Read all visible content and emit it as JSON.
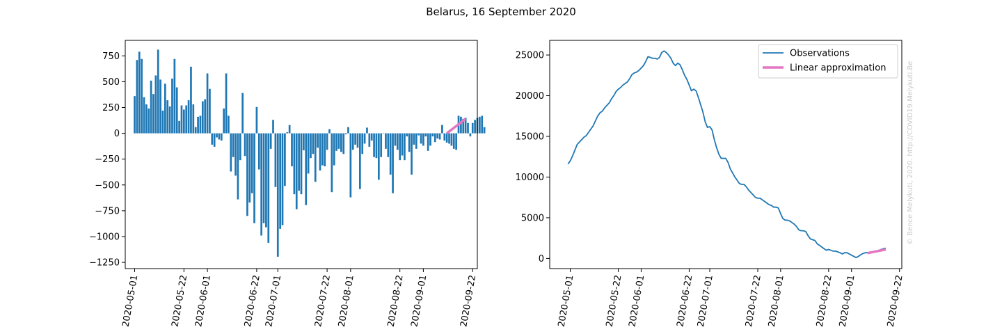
{
  "figure": {
    "suptitle": "Belarus, 16 September 2020",
    "watermark": "© Bence Melykuti, 2020. http://COVID19.Melykuti.Be"
  },
  "colors": {
    "bars": "#1f77b4",
    "observations": "#1f77b4",
    "linear_approximation": "#e377c2"
  },
  "chart_data": [
    {
      "type": "bar",
      "title": "",
      "xlabel": "",
      "ylabel": "",
      "x_axis": "date",
      "xlim": [
        "2020-04-27",
        "2020-09-24"
      ],
      "ylim": [
        -1310,
        900
      ],
      "xticks": [
        "2020-05-01",
        "2020-05-22",
        "2020-06-01",
        "2020-06-22",
        "2020-07-01",
        "2020-07-22",
        "2020-08-01",
        "2020-08-22",
        "2020-09-01",
        "2020-09-22"
      ],
      "yticks": [
        750,
        500,
        250,
        0,
        -250,
        -500,
        -750,
        -1000,
        -1250
      ],
      "ytick_labels": [
        "750",
        "500",
        "250",
        "0",
        "−250",
        "−500",
        "−750",
        "−1000",
        "−1250"
      ],
      "grid": false,
      "start_date": "2020-05-01",
      "series": [
        {
          "values": [
            360,
            710,
            790,
            720,
            350,
            280,
            240,
            510,
            380,
            560,
            810,
            520,
            220,
            480,
            320,
            260,
            530,
            720,
            445,
            120,
            270,
            230,
            270,
            320,
            645,
            280,
            60,
            160,
            170,
            310,
            330,
            580,
            430,
            -110,
            -130,
            -40,
            -60,
            -70,
            240,
            580,
            170,
            -370,
            -230,
            -410,
            -640,
            -260,
            390,
            -220,
            -800,
            -670,
            -580,
            -870,
            255,
            -350,
            -990,
            -870,
            -910,
            -1060,
            -150,
            130,
            -520,
            -1195,
            -925,
            -890,
            -510,
            10,
            80,
            -320,
            -590,
            -735,
            -555,
            -590,
            -165,
            -695,
            -390,
            -240,
            -200,
            -470,
            -140,
            -360,
            -310,
            -320,
            -160,
            40,
            -570,
            -310,
            -170,
            -150,
            -180,
            -200,
            -10,
            60,
            -620,
            -160,
            -110,
            -140,
            -540,
            -200,
            -100,
            55,
            -130,
            -70,
            -230,
            -240,
            -450,
            -230,
            0,
            -150,
            -230,
            -400,
            -580,
            -120,
            -160,
            -260,
            -215,
            -260,
            -30,
            -180,
            -400,
            -110,
            -150,
            -20,
            -100,
            -120,
            -30,
            -170,
            -120,
            -30,
            -85,
            -50,
            -60,
            80,
            -70,
            -90,
            -100,
            -120,
            -150,
            -160,
            170,
            160,
            140,
            150,
            100,
            -30,
            100,
            130,
            150,
            160,
            170,
            60
          ],
          "color": "#1f77b4"
        }
      ],
      "linear_approximation": {
        "x": [
          "2020-09-11",
          "2020-09-19"
        ],
        "y": [
          0,
          140
        ]
      }
    },
    {
      "type": "line",
      "title": "",
      "xlabel": "",
      "ylabel": "",
      "x_axis": "date",
      "xlim": [
        "2020-04-22",
        "2020-09-23"
      ],
      "ylim": [
        -1250,
        26800
      ],
      "xticks": [
        "2020-05-01",
        "2020-05-22",
        "2020-06-01",
        "2020-06-22",
        "2020-07-01",
        "2020-07-22",
        "2020-08-01",
        "2020-08-22",
        "2020-09-01",
        "2020-09-22"
      ],
      "yticks": [
        25000,
        20000,
        15000,
        10000,
        5000,
        0
      ],
      "grid": false,
      "legend": {
        "placement": "upper right",
        "entries": [
          "Observations",
          "Linear approximation"
        ]
      },
      "series": [
        {
          "name": "Observations",
          "color": "#1f77b4",
          "points": [
            [
              "2020-04-30",
              11600
            ],
            [
              "2020-05-01",
              12000
            ],
            [
              "2020-05-02",
              12600
            ],
            [
              "2020-05-03",
              13300
            ],
            [
              "2020-05-04",
              14000
            ],
            [
              "2020-05-05",
              14300
            ],
            [
              "2020-05-06",
              14600
            ],
            [
              "2020-05-07",
              14900
            ],
            [
              "2020-05-08",
              15100
            ],
            [
              "2020-05-09",
              15500
            ],
            [
              "2020-05-10",
              15900
            ],
            [
              "2020-05-11",
              16300
            ],
            [
              "2020-05-12",
              16900
            ],
            [
              "2020-05-13",
              17500
            ],
            [
              "2020-05-14",
              17900
            ],
            [
              "2020-05-15",
              18100
            ],
            [
              "2020-05-16",
              18500
            ],
            [
              "2020-05-17",
              18800
            ],
            [
              "2020-05-18",
              19100
            ],
            [
              "2020-05-19",
              19600
            ],
            [
              "2020-05-20",
              20000
            ],
            [
              "2020-05-21",
              20500
            ],
            [
              "2020-05-22",
              20800
            ],
            [
              "2020-05-23",
              21000
            ],
            [
              "2020-05-24",
              21300
            ],
            [
              "2020-05-25",
              21500
            ],
            [
              "2020-05-26",
              21700
            ],
            [
              "2020-05-27",
              22100
            ],
            [
              "2020-05-28",
              22600
            ],
            [
              "2020-05-29",
              22800
            ],
            [
              "2020-05-30",
              22900
            ],
            [
              "2020-05-31",
              23100
            ],
            [
              "2020-06-01",
              23400
            ],
            [
              "2020-06-02",
              23700
            ],
            [
              "2020-06-03",
              24200
            ],
            [
              "2020-06-04",
              24800
            ],
            [
              "2020-06-05",
              24700
            ],
            [
              "2020-06-06",
              24600
            ],
            [
              "2020-06-07",
              24600
            ],
            [
              "2020-06-08",
              24500
            ],
            [
              "2020-06-09",
              24700
            ],
            [
              "2020-06-10",
              25300
            ],
            [
              "2020-06-11",
              25500
            ],
            [
              "2020-06-12",
              25300
            ],
            [
              "2020-06-13",
              25000
            ],
            [
              "2020-06-14",
              24600
            ],
            [
              "2020-06-15",
              24000
            ],
            [
              "2020-06-16",
              23700
            ],
            [
              "2020-06-17",
              24000
            ],
            [
              "2020-06-18",
              23800
            ],
            [
              "2020-06-19",
              23200
            ],
            [
              "2020-06-20",
              22500
            ],
            [
              "2020-06-21",
              22000
            ],
            [
              "2020-06-22",
              21300
            ],
            [
              "2020-06-23",
              20600
            ],
            [
              "2020-06-24",
              20800
            ],
            [
              "2020-06-25",
              20600
            ],
            [
              "2020-06-26",
              19800
            ],
            [
              "2020-06-27",
              18900
            ],
            [
              "2020-06-28",
              18000
            ],
            [
              "2020-06-29",
              16800
            ],
            [
              "2020-06-30",
              16100
            ],
            [
              "2020-07-01",
              16200
            ],
            [
              "2020-07-02",
              15800
            ],
            [
              "2020-07-03",
              14600
            ],
            [
              "2020-07-04",
              13600
            ],
            [
              "2020-07-05",
              12800
            ],
            [
              "2020-07-06",
              12300
            ],
            [
              "2020-07-07",
              12300
            ],
            [
              "2020-07-08",
              12300
            ],
            [
              "2020-07-09",
              11800
            ],
            [
              "2020-07-10",
              11000
            ],
            [
              "2020-07-11",
              10500
            ],
            [
              "2020-07-12",
              10000
            ],
            [
              "2020-07-13",
              9600
            ],
            [
              "2020-07-14",
              9200
            ],
            [
              "2020-07-15",
              9100
            ],
            [
              "2020-07-16",
              9100
            ],
            [
              "2020-07-17",
              8800
            ],
            [
              "2020-07-18",
              8400
            ],
            [
              "2020-07-19",
              8100
            ],
            [
              "2020-07-20",
              7800
            ],
            [
              "2020-07-21",
              7500
            ],
            [
              "2020-07-22",
              7400
            ],
            [
              "2020-07-23",
              7400
            ],
            [
              "2020-07-24",
              7200
            ],
            [
              "2020-07-25",
              7000
            ],
            [
              "2020-07-26",
              6800
            ],
            [
              "2020-07-27",
              6600
            ],
            [
              "2020-07-28",
              6500
            ],
            [
              "2020-07-29",
              6300
            ],
            [
              "2020-07-30",
              6300
            ],
            [
              "2020-07-31",
              6200
            ],
            [
              "2020-08-01",
              5500
            ],
            [
              "2020-08-02",
              4900
            ],
            [
              "2020-08-03",
              4700
            ],
            [
              "2020-08-04",
              4700
            ],
            [
              "2020-08-05",
              4600
            ],
            [
              "2020-08-06",
              4400
            ],
            [
              "2020-08-07",
              4200
            ],
            [
              "2020-08-08",
              3900
            ],
            [
              "2020-08-09",
              3500
            ],
            [
              "2020-08-10",
              3400
            ],
            [
              "2020-08-11",
              3400
            ],
            [
              "2020-08-12",
              3300
            ],
            [
              "2020-08-13",
              2800
            ],
            [
              "2020-08-14",
              2400
            ],
            [
              "2020-08-15",
              2300
            ],
            [
              "2020-08-16",
              2200
            ],
            [
              "2020-08-17",
              1800
            ],
            [
              "2020-08-18",
              1600
            ],
            [
              "2020-08-19",
              1400
            ],
            [
              "2020-08-20",
              1200
            ],
            [
              "2020-08-21",
              1000
            ],
            [
              "2020-08-22",
              1100
            ],
            [
              "2020-08-23",
              1000
            ],
            [
              "2020-08-24",
              900
            ],
            [
              "2020-08-25",
              900
            ],
            [
              "2020-08-26",
              800
            ],
            [
              "2020-08-27",
              700
            ],
            [
              "2020-08-28",
              550
            ],
            [
              "2020-08-29",
              700
            ],
            [
              "2020-08-30",
              700
            ],
            [
              "2020-08-31",
              550
            ],
            [
              "2020-09-01",
              400
            ],
            [
              "2020-09-02",
              250
            ],
            [
              "2020-09-03",
              100
            ],
            [
              "2020-09-04",
              250
            ],
            [
              "2020-09-05",
              450
            ],
            [
              "2020-09-06",
              600
            ],
            [
              "2020-09-07",
              700
            ],
            [
              "2020-09-08",
              700
            ],
            [
              "2020-09-09",
              750
            ],
            [
              "2020-09-10",
              750
            ],
            [
              "2020-09-11",
              800
            ],
            [
              "2020-09-12",
              900
            ],
            [
              "2020-09-13",
              1000
            ],
            [
              "2020-09-14",
              1100
            ],
            [
              "2020-09-15",
              1200
            ],
            [
              "2020-09-16",
              1250
            ]
          ]
        },
        {
          "name": "Linear approximation",
          "color": "#e377c2",
          "points": [
            [
              "2020-09-08",
              650
            ],
            [
              "2020-09-16",
              1100
            ]
          ]
        }
      ]
    }
  ]
}
